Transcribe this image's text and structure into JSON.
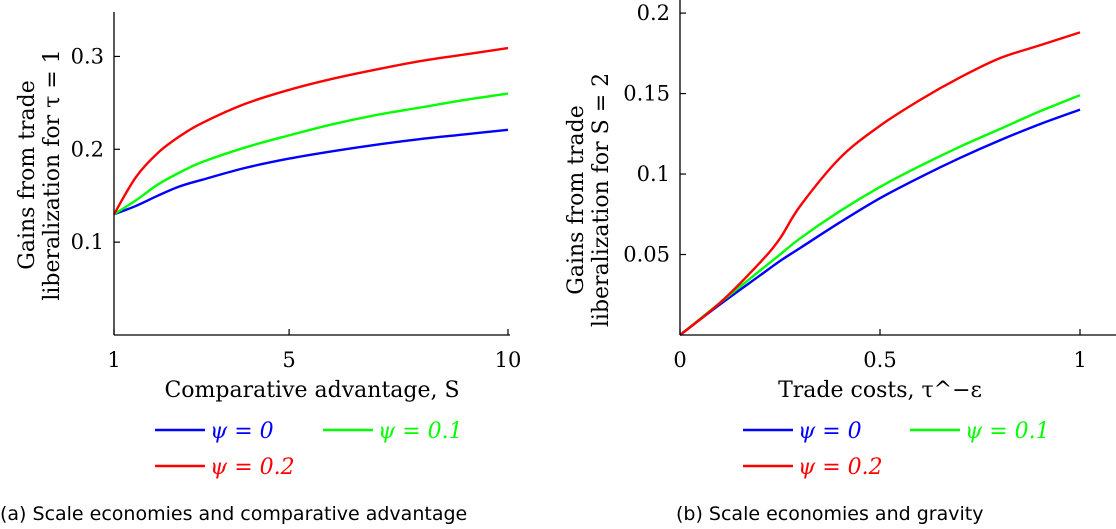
{
  "chart_data": [
    {
      "type": "line",
      "panel": "a",
      "caption": "(a) Scale economies and comparative advantage",
      "xlabel": "Comparative advantage, S",
      "ylabel": [
        "Gains from trade",
        "liberalization for τ = 1"
      ],
      "xlim": [
        1,
        10
      ],
      "ylim": [
        0.0,
        0.35
      ],
      "xticks": [
        1,
        5,
        10
      ],
      "xtick_labels": [
        "1",
        "5",
        "10"
      ],
      "yticks": [
        0.1,
        0.2,
        0.3
      ],
      "ytick_labels": [
        "0.1",
        "0.2",
        "0.3"
      ],
      "grid": false,
      "legend": "below",
      "x": [
        1,
        1.5,
        2,
        2.5,
        3,
        4,
        5,
        6,
        7,
        8,
        9,
        10
      ],
      "series": [
        {
          "name": "ψ = 0",
          "color": "#0000ff",
          "values": [
            0.13,
            0.139,
            0.15,
            0.16,
            0.167,
            0.18,
            0.19,
            0.198,
            0.205,
            0.211,
            0.216,
            0.221
          ]
        },
        {
          "name": "ψ = 0.1",
          "color": "#00ff00",
          "values": [
            0.13,
            0.145,
            0.162,
            0.175,
            0.186,
            0.202,
            0.215,
            0.227,
            0.237,
            0.245,
            0.253,
            0.26
          ]
        },
        {
          "name": "ψ = 0.2",
          "color": "#ff0000",
          "values": [
            0.13,
            0.17,
            0.196,
            0.214,
            0.228,
            0.249,
            0.264,
            0.276,
            0.286,
            0.295,
            0.302,
            0.309
          ]
        }
      ]
    },
    {
      "type": "line",
      "panel": "b",
      "caption": "(b) Scale economies and gravity",
      "xlabel": "Trade costs, τ^−ε",
      "ylabel": [
        "Gains from trade",
        "liberalization for S = 2"
      ],
      "xlim": [
        0,
        1.1
      ],
      "ylim": [
        0.0,
        0.21
      ],
      "xticks": [
        0,
        0.5,
        1
      ],
      "xtick_labels": [
        "0",
        "0.5",
        "1"
      ],
      "yticks": [
        0.05,
        0.1,
        0.15,
        0.2
      ],
      "ytick_labels": [
        "0.05",
        "0.1",
        "0.15",
        "0.2"
      ],
      "grid": false,
      "legend": "below",
      "x": [
        0,
        0.1,
        0.2,
        0.25,
        0.3,
        0.4,
        0.5,
        0.6,
        0.7,
        0.8,
        0.9,
        1.0
      ],
      "series": [
        {
          "name": "ψ = 0",
          "color": "#0000ff",
          "values": [
            0.0,
            0.019,
            0.037,
            0.046,
            0.054,
            0.07,
            0.085,
            0.098,
            0.11,
            0.121,
            0.131,
            0.14
          ]
        },
        {
          "name": "ψ = 0.1",
          "color": "#00ff00",
          "values": [
            0.0,
            0.02,
            0.04,
            0.05,
            0.06,
            0.077,
            0.092,
            0.105,
            0.117,
            0.128,
            0.139,
            0.149
          ]
        },
        {
          "name": "ψ = 0.2",
          "color": "#ff0000",
          "values": [
            0.0,
            0.02,
            0.045,
            0.06,
            0.08,
            0.11,
            0.13,
            0.146,
            0.16,
            0.172,
            0.18,
            0.188
          ]
        }
      ]
    }
  ]
}
